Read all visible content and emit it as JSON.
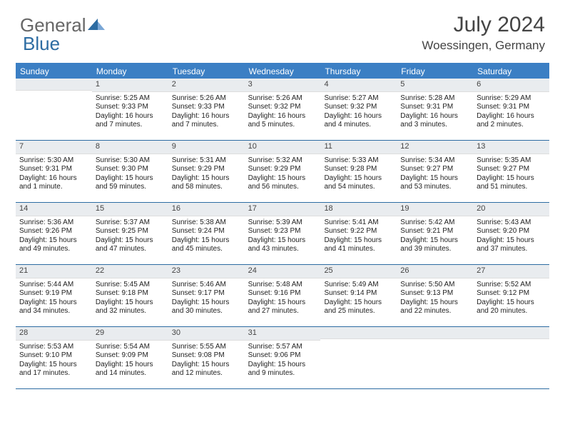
{
  "logo": {
    "part1": "General",
    "part2": "Blue"
  },
  "title": "July 2024",
  "location": "Woessingen, Germany",
  "colors": {
    "header_bg": "#3b7fc4",
    "header_text": "#ffffff",
    "daynum_bg": "#e9ecef",
    "border": "#2d6ca2",
    "body_text": "#222222",
    "logo_gray": "#666666",
    "logo_blue": "#2d6ca2"
  },
  "day_headers": [
    "Sunday",
    "Monday",
    "Tuesday",
    "Wednesday",
    "Thursday",
    "Friday",
    "Saturday"
  ],
  "weeks": [
    [
      {
        "n": "",
        "sr": "",
        "ss": "",
        "dl": ""
      },
      {
        "n": "1",
        "sr": "Sunrise: 5:25 AM",
        "ss": "Sunset: 9:33 PM",
        "dl": "Daylight: 16 hours and 7 minutes."
      },
      {
        "n": "2",
        "sr": "Sunrise: 5:26 AM",
        "ss": "Sunset: 9:33 PM",
        "dl": "Daylight: 16 hours and 7 minutes."
      },
      {
        "n": "3",
        "sr": "Sunrise: 5:26 AM",
        "ss": "Sunset: 9:32 PM",
        "dl": "Daylight: 16 hours and 5 minutes."
      },
      {
        "n": "4",
        "sr": "Sunrise: 5:27 AM",
        "ss": "Sunset: 9:32 PM",
        "dl": "Daylight: 16 hours and 4 minutes."
      },
      {
        "n": "5",
        "sr": "Sunrise: 5:28 AM",
        "ss": "Sunset: 9:31 PM",
        "dl": "Daylight: 16 hours and 3 minutes."
      },
      {
        "n": "6",
        "sr": "Sunrise: 5:29 AM",
        "ss": "Sunset: 9:31 PM",
        "dl": "Daylight: 16 hours and 2 minutes."
      }
    ],
    [
      {
        "n": "7",
        "sr": "Sunrise: 5:30 AM",
        "ss": "Sunset: 9:31 PM",
        "dl": "Daylight: 16 hours and 1 minute."
      },
      {
        "n": "8",
        "sr": "Sunrise: 5:30 AM",
        "ss": "Sunset: 9:30 PM",
        "dl": "Daylight: 15 hours and 59 minutes."
      },
      {
        "n": "9",
        "sr": "Sunrise: 5:31 AM",
        "ss": "Sunset: 9:29 PM",
        "dl": "Daylight: 15 hours and 58 minutes."
      },
      {
        "n": "10",
        "sr": "Sunrise: 5:32 AM",
        "ss": "Sunset: 9:29 PM",
        "dl": "Daylight: 15 hours and 56 minutes."
      },
      {
        "n": "11",
        "sr": "Sunrise: 5:33 AM",
        "ss": "Sunset: 9:28 PM",
        "dl": "Daylight: 15 hours and 54 minutes."
      },
      {
        "n": "12",
        "sr": "Sunrise: 5:34 AM",
        "ss": "Sunset: 9:27 PM",
        "dl": "Daylight: 15 hours and 53 minutes."
      },
      {
        "n": "13",
        "sr": "Sunrise: 5:35 AM",
        "ss": "Sunset: 9:27 PM",
        "dl": "Daylight: 15 hours and 51 minutes."
      }
    ],
    [
      {
        "n": "14",
        "sr": "Sunrise: 5:36 AM",
        "ss": "Sunset: 9:26 PM",
        "dl": "Daylight: 15 hours and 49 minutes."
      },
      {
        "n": "15",
        "sr": "Sunrise: 5:37 AM",
        "ss": "Sunset: 9:25 PM",
        "dl": "Daylight: 15 hours and 47 minutes."
      },
      {
        "n": "16",
        "sr": "Sunrise: 5:38 AM",
        "ss": "Sunset: 9:24 PM",
        "dl": "Daylight: 15 hours and 45 minutes."
      },
      {
        "n": "17",
        "sr": "Sunrise: 5:39 AM",
        "ss": "Sunset: 9:23 PM",
        "dl": "Daylight: 15 hours and 43 minutes."
      },
      {
        "n": "18",
        "sr": "Sunrise: 5:41 AM",
        "ss": "Sunset: 9:22 PM",
        "dl": "Daylight: 15 hours and 41 minutes."
      },
      {
        "n": "19",
        "sr": "Sunrise: 5:42 AM",
        "ss": "Sunset: 9:21 PM",
        "dl": "Daylight: 15 hours and 39 minutes."
      },
      {
        "n": "20",
        "sr": "Sunrise: 5:43 AM",
        "ss": "Sunset: 9:20 PM",
        "dl": "Daylight: 15 hours and 37 minutes."
      }
    ],
    [
      {
        "n": "21",
        "sr": "Sunrise: 5:44 AM",
        "ss": "Sunset: 9:19 PM",
        "dl": "Daylight: 15 hours and 34 minutes."
      },
      {
        "n": "22",
        "sr": "Sunrise: 5:45 AM",
        "ss": "Sunset: 9:18 PM",
        "dl": "Daylight: 15 hours and 32 minutes."
      },
      {
        "n": "23",
        "sr": "Sunrise: 5:46 AM",
        "ss": "Sunset: 9:17 PM",
        "dl": "Daylight: 15 hours and 30 minutes."
      },
      {
        "n": "24",
        "sr": "Sunrise: 5:48 AM",
        "ss": "Sunset: 9:16 PM",
        "dl": "Daylight: 15 hours and 27 minutes."
      },
      {
        "n": "25",
        "sr": "Sunrise: 5:49 AM",
        "ss": "Sunset: 9:14 PM",
        "dl": "Daylight: 15 hours and 25 minutes."
      },
      {
        "n": "26",
        "sr": "Sunrise: 5:50 AM",
        "ss": "Sunset: 9:13 PM",
        "dl": "Daylight: 15 hours and 22 minutes."
      },
      {
        "n": "27",
        "sr": "Sunrise: 5:52 AM",
        "ss": "Sunset: 9:12 PM",
        "dl": "Daylight: 15 hours and 20 minutes."
      }
    ],
    [
      {
        "n": "28",
        "sr": "Sunrise: 5:53 AM",
        "ss": "Sunset: 9:10 PM",
        "dl": "Daylight: 15 hours and 17 minutes."
      },
      {
        "n": "29",
        "sr": "Sunrise: 5:54 AM",
        "ss": "Sunset: 9:09 PM",
        "dl": "Daylight: 15 hours and 14 minutes."
      },
      {
        "n": "30",
        "sr": "Sunrise: 5:55 AM",
        "ss": "Sunset: 9:08 PM",
        "dl": "Daylight: 15 hours and 12 minutes."
      },
      {
        "n": "31",
        "sr": "Sunrise: 5:57 AM",
        "ss": "Sunset: 9:06 PM",
        "dl": "Daylight: 15 hours and 9 minutes."
      },
      {
        "n": "",
        "sr": "",
        "ss": "",
        "dl": ""
      },
      {
        "n": "",
        "sr": "",
        "ss": "",
        "dl": ""
      },
      {
        "n": "",
        "sr": "",
        "ss": "",
        "dl": ""
      }
    ]
  ]
}
